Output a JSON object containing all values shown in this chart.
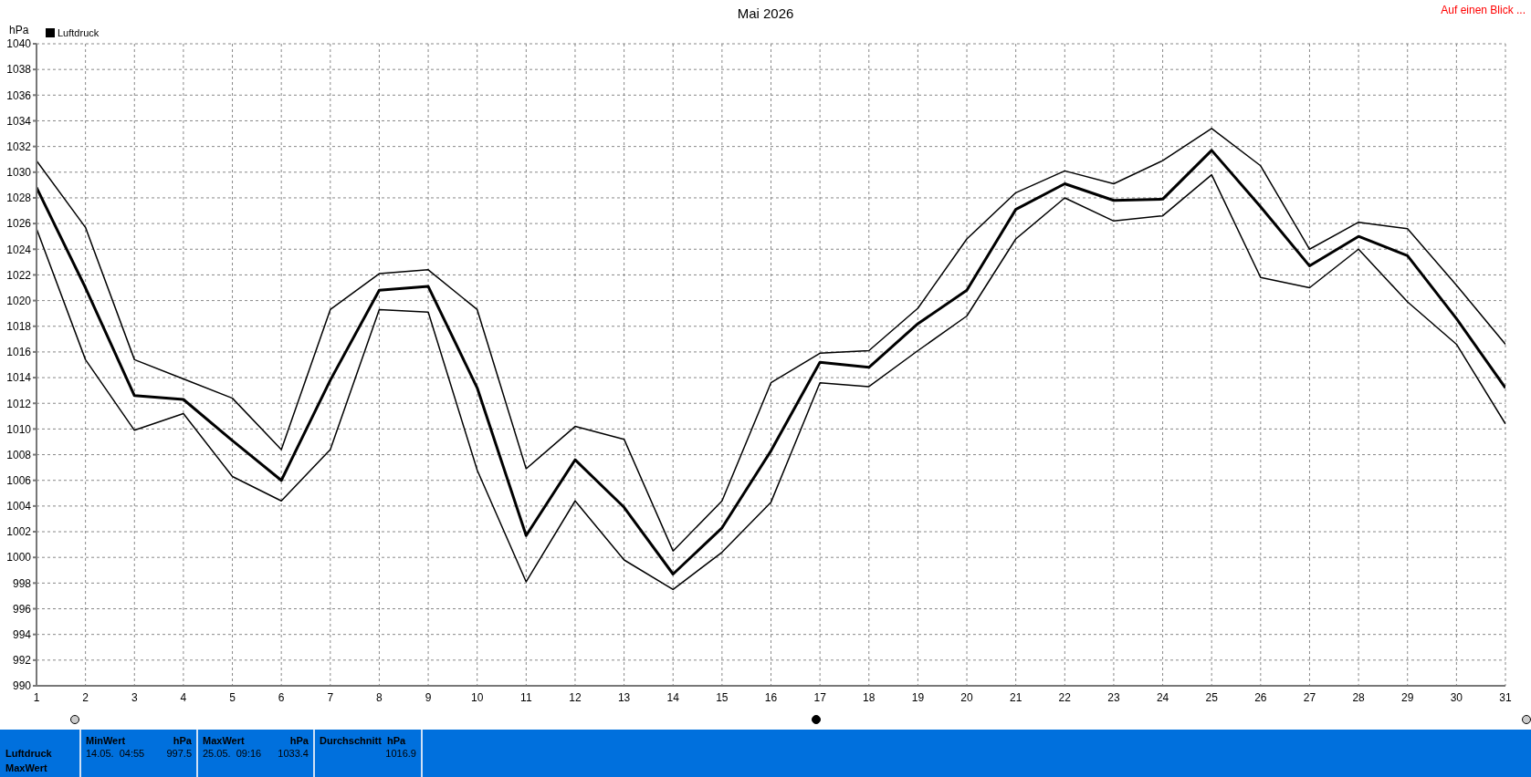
{
  "chart_data": {
    "type": "line",
    "title": "Mai 2026",
    "ylabel": "hPa",
    "x": [
      1,
      2,
      3,
      4,
      5,
      6,
      7,
      8,
      9,
      10,
      11,
      12,
      13,
      14,
      15,
      16,
      17,
      18,
      19,
      20,
      21,
      22,
      23,
      24,
      25,
      26,
      27,
      28,
      29,
      30,
      31
    ],
    "xlim": [
      1,
      31
    ],
    "xticks": [
      1,
      2,
      3,
      4,
      5,
      6,
      7,
      8,
      9,
      10,
      11,
      12,
      13,
      14,
      15,
      16,
      17,
      18,
      19,
      20,
      21,
      22,
      23,
      24,
      25,
      26,
      27,
      28,
      29,
      30,
      31
    ],
    "ylim": [
      990,
      1040
    ],
    "yticks": [
      990,
      992,
      994,
      996,
      998,
      1000,
      1002,
      1004,
      1006,
      1008,
      1010,
      1012,
      1014,
      1016,
      1018,
      1020,
      1022,
      1024,
      1026,
      1028,
      1030,
      1032,
      1034,
      1036,
      1038,
      1040
    ],
    "series": [
      {
        "color": "#000000",
        "values": [
          1030.9,
          1025.7,
          1015.4,
          1013.9,
          1012.4,
          1008.4,
          1019.3,
          1022.1,
          1022.4,
          1019.3,
          1006.9,
          1010.2,
          1009.2,
          1000.5,
          1004.4,
          1013.6,
          1015.9,
          1016.1,
          1019.4,
          1024.8,
          1028.4,
          1030.1,
          1029.1,
          1030.9,
          1033.4,
          1030.5,
          1024.0,
          1026.1,
          1025.6,
          1021.2,
          1016.6
        ]
      },
      {
        "name": "Luftdruck",
        "color": "#000000",
        "values": [
          1028.8,
          1021.0,
          1012.6,
          1012.3,
          1009.1,
          1006.0,
          1013.8,
          1020.8,
          1021.1,
          1013.2,
          1001.7,
          1007.6,
          1003.9,
          998.7,
          1002.3,
          1008.3,
          1015.2,
          1014.8,
          1018.2,
          1020.8,
          1027.1,
          1029.1,
          1027.8,
          1027.9,
          1031.7,
          1027.3,
          1022.7,
          1025.0,
          1023.5,
          1018.6,
          1013.2
        ]
      },
      {
        "color": "#000000",
        "values": [
          1025.6,
          1015.4,
          1009.9,
          1011.2,
          1006.3,
          1004.4,
          1008.4,
          1019.3,
          1019.1,
          1006.8,
          998.1,
          1004.4,
          999.8,
          997.5,
          1000.4,
          1004.3,
          1013.6,
          1013.3,
          1016.1,
          1018.8,
          1024.8,
          1028.0,
          1026.2,
          1026.6,
          1029.8,
          1021.8,
          1021.0,
          1024.0,
          1019.9,
          1016.6,
          1010.4
        ]
      }
    ],
    "grid": true,
    "legend": "top left",
    "marker": "none",
    "line_style": "solid",
    "annotations": [
      "Auf einen Blick ...",
      "Luftdruck",
      "MaxWert",
      "MinWert",
      "hPa",
      "14.05.  04:55",
      "997.5",
      "MaxWert",
      "hPa",
      "25.05.  09:16",
      "1033.4",
      "Durchschnitt  hPa",
      "1016.9"
    ]
  }
}
